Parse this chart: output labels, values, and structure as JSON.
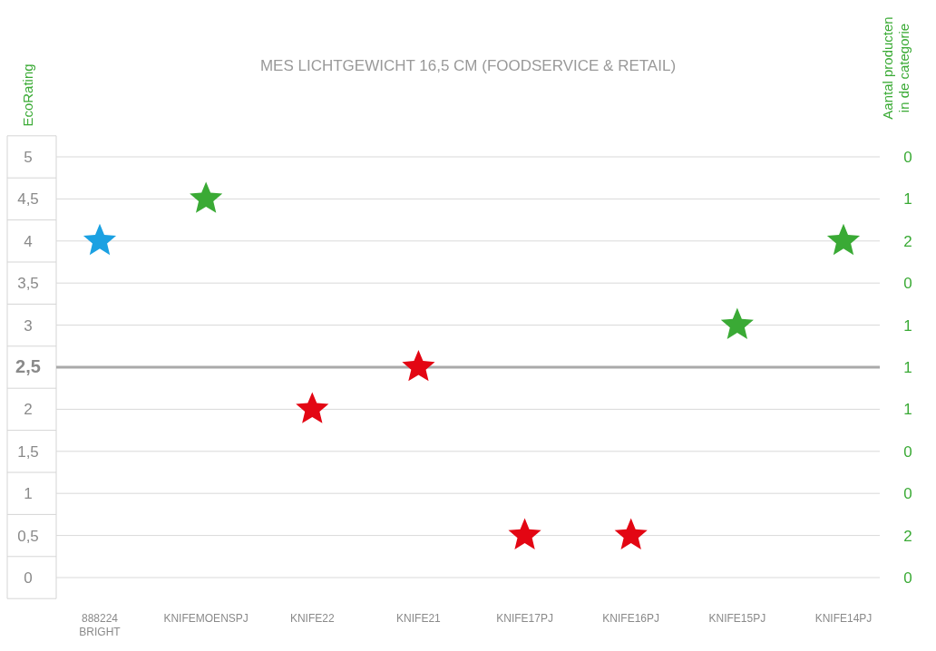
{
  "chart_data": {
    "type": "scatter",
    "title": "MES LICHTGEWICHT 16,5 CM (FOODSERVICE & RETAIL)",
    "ylabel": "EcoRating",
    "y2label": "Aantal producten\nin de categorie",
    "categories": [
      "888224 BRIGHT",
      "KNIFEMOENSPJ",
      "KNIFE22",
      "KNIFE21",
      "KNIFE17PJ",
      "KNIFE16PJ",
      "KNIFE15PJ",
      "KNIFE14PJ"
    ],
    "values": [
      4,
      4.5,
      2,
      2.5,
      0.5,
      0.5,
      3,
      4
    ],
    "colors": [
      "#1ba1e2",
      "#3aaa35",
      "#e30613",
      "#e30613",
      "#e30613",
      "#e30613",
      "#3aaa35",
      "#3aaa35"
    ],
    "marker": "star",
    "ylim": [
      0,
      5
    ],
    "yticks": [
      0,
      {
        "value": 0.5,
        "label": "0,5"
      },
      1,
      {
        "value": 1.5,
        "label": "1,5"
      },
      2,
      {
        "value": 2.5,
        "label": "2,5"
      },
      3,
      {
        "value": 3.5,
        "label": "3,5"
      },
      4,
      {
        "value": 4.5,
        "label": "4,5"
      },
      5
    ],
    "y2_categories": [
      "0",
      "1",
      "2",
      "0",
      "1",
      "1",
      "1",
      "0",
      "0",
      "2",
      "0"
    ],
    "ref_lines": [
      {
        "axis": "y",
        "value": 2.5,
        "color": "#aaaaaa"
      }
    ],
    "grid": "y"
  }
}
